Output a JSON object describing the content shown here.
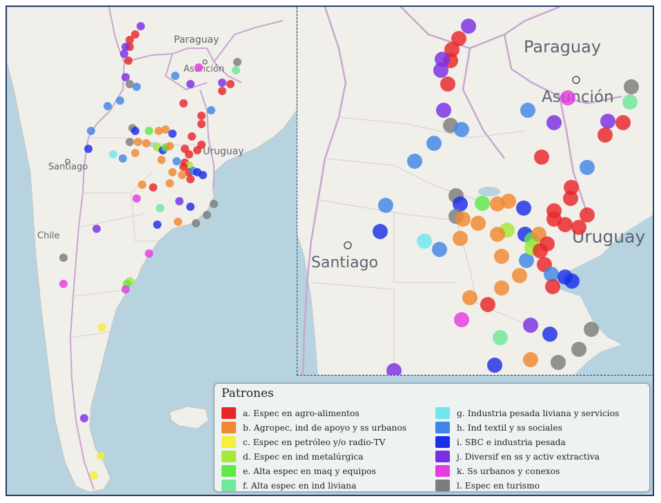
{
  "map": {
    "labels": {
      "paraguay": "Paraguay",
      "asuncion": "Asunción",
      "uruguay": "Uruguay",
      "santiago": "Santiago",
      "chile": "Chile"
    },
    "colors": {
      "a": "#e8262a",
      "b": "#ef8930",
      "c": "#f4ef3a",
      "d": "#a4ea3a",
      "e": "#5fe84a",
      "f": "#6fe89a",
      "g": "#6ee8ee",
      "h": "#3f86e8",
      "i": "#1b2ee8",
      "j": "#7a2fe4",
      "k": "#e33de0",
      "l": "#7c7c7c"
    }
  },
  "legend": {
    "title": "Patrones",
    "items": [
      {
        "key": "a",
        "label": "a. Espec en agro-alimentos"
      },
      {
        "key": "b",
        "label": "b. Agropec, ind de apoyo y ss urbanos"
      },
      {
        "key": "c",
        "label": "c. Espec en petróleo y/o radio-TV"
      },
      {
        "key": "d",
        "label": "d. Espec en ind metalúrgica"
      },
      {
        "key": "e",
        "label": "e. Alta espec en maq y equipos"
      },
      {
        "key": "f",
        "label": "f. Alta espec en ind liviana"
      },
      {
        "key": "g",
        "label": "g. Industria pesada liviana y servicios"
      },
      {
        "key": "h",
        "label": "h. Ind textil y ss sociales"
      },
      {
        "key": "i",
        "label": "i. SBC e industria pesada"
      },
      {
        "key": "j",
        "label": "j. Diversif en ss y activ extractiva"
      },
      {
        "key": "k",
        "label": "k. Ss urbanos y conexos"
      },
      {
        "key": "l",
        "label": "l. Espec en turismo"
      }
    ]
  }
}
